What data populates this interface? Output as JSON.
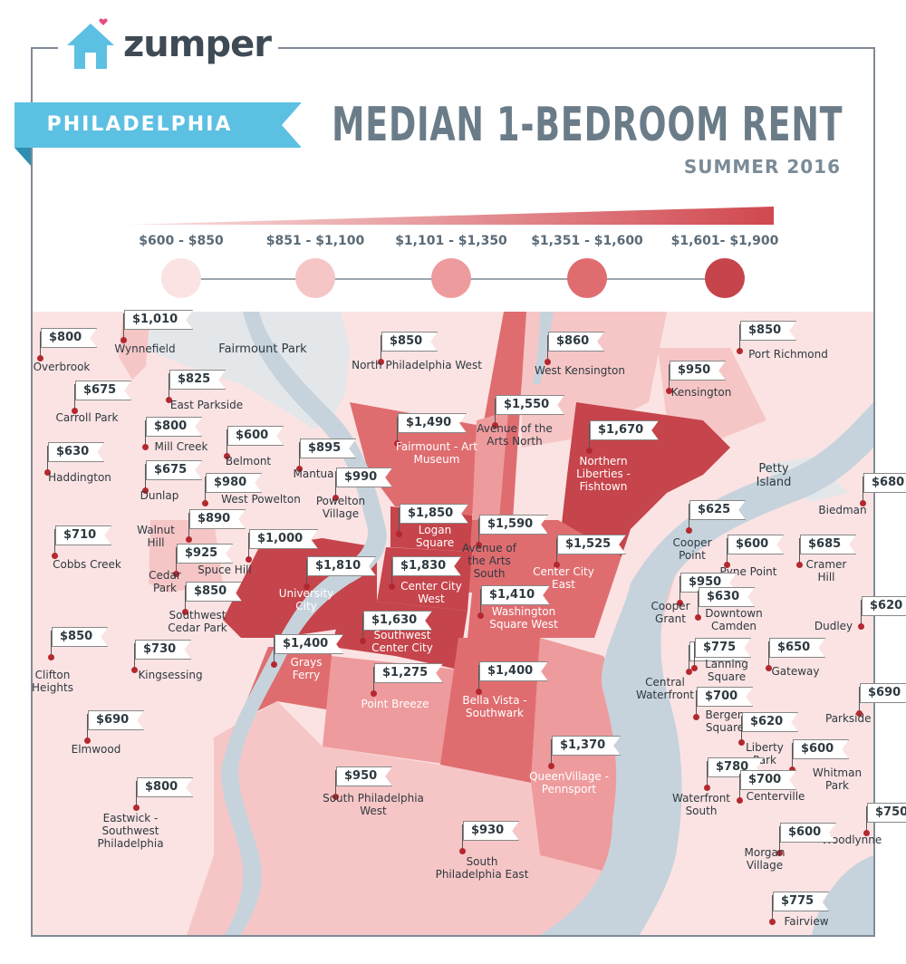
{
  "brand": {
    "name": "zumper"
  },
  "city": "PHILADELPHIA",
  "title": "MEDIAN 1-BEDROOM RENT",
  "subtitle": "SUMMER 2016",
  "legend": [
    {
      "label": "$600 - $850",
      "color": "#fbe3e3"
    },
    {
      "label": "$851 - $1,100",
      "color": "#f6c6c6"
    },
    {
      "label": "$1,101 - $1,350",
      "color": "#ee9b9d"
    },
    {
      "label": "$1,351 - $1,600",
      "color": "#df6d70"
    },
    {
      "label": "$1,601- $1,900",
      "color": "#c6444b"
    }
  ],
  "places": [
    {
      "name": "Fairmount Park"
    },
    {
      "name": "Petty Island"
    }
  ],
  "neighborhoods": [
    {
      "name": "Wynnefield",
      "rent": "$1,010"
    },
    {
      "name": "Overbrook",
      "rent": "$800"
    },
    {
      "name": "North Philadelphia West",
      "rent": "$850"
    },
    {
      "name": "West Kensington",
      "rent": "$860"
    },
    {
      "name": "Port Richmond",
      "rent": "$850"
    },
    {
      "name": "East Parkside",
      "rent": "$825"
    },
    {
      "name": "Carroll Park",
      "rent": "$675"
    },
    {
      "name": "Kensington",
      "rent": "$950"
    },
    {
      "name": "Avenue of the Arts North",
      "rent": "$1,550"
    },
    {
      "name": "Fairmount - Art Museum",
      "rent": "$1,490"
    },
    {
      "name": "Mill Creek",
      "rent": "$800"
    },
    {
      "name": "Belmont",
      "rent": "$600"
    },
    {
      "name": "Northern Liberties - Fishtown",
      "rent": "$1,670"
    },
    {
      "name": "Haddington",
      "rent": "$630"
    },
    {
      "name": "Mantua",
      "rent": "$895"
    },
    {
      "name": "Dunlap",
      "rent": "$675"
    },
    {
      "name": "Powelton Village",
      "rent": "$990"
    },
    {
      "name": "West Powelton",
      "rent": "$980"
    },
    {
      "name": "Biedman",
      "rent": "$680"
    },
    {
      "name": "Logan Square",
      "rent": "$1,850"
    },
    {
      "name": "Walnut Hill",
      "rent": "$890"
    },
    {
      "name": "Avenue of the Arts South",
      "rent": "$1,590"
    },
    {
      "name": "Cooper Point",
      "rent": "$625"
    },
    {
      "name": "Cobbs Creek",
      "rent": "$710"
    },
    {
      "name": "Spuce Hill",
      "rent": "$1,000"
    },
    {
      "name": "Center City East",
      "rent": "$1,525"
    },
    {
      "name": "Pyne Point",
      "rent": "$600"
    },
    {
      "name": "Cramer Hill",
      "rent": "$685"
    },
    {
      "name": "Cedar Park",
      "rent": "$925"
    },
    {
      "name": "University City",
      "rent": "$1,810"
    },
    {
      "name": "Center City West",
      "rent": "$1,830"
    },
    {
      "name": "Cooper Grant",
      "rent": "$950"
    },
    {
      "name": "Downtown Camden",
      "rent": "$630"
    },
    {
      "name": "Southwest Cedar Park",
      "rent": "$850"
    },
    {
      "name": "Washington Square West",
      "rent": "$1,410"
    },
    {
      "name": "Dudley",
      "rent": "$620"
    },
    {
      "name": "Southwest Center City",
      "rent": "$1,630"
    },
    {
      "name": "Clifton Heights",
      "rent": "$850"
    },
    {
      "name": "Kingsessing",
      "rent": "$730"
    },
    {
      "name": "Grays Ferry",
      "rent": "$1,400"
    },
    {
      "name": "Central Waterfront",
      "rent": "$700"
    },
    {
      "name": "Lanning Square",
      "rent": "$775"
    },
    {
      "name": "Gateway",
      "rent": "$650"
    },
    {
      "name": "Point Breeze",
      "rent": "$1,275"
    },
    {
      "name": "Bella Vista - Southwark",
      "rent": "$1,400"
    },
    {
      "name": "Bergen Square",
      "rent": "$700"
    },
    {
      "name": "Parkside",
      "rent": "$690"
    },
    {
      "name": "Elmwood",
      "rent": "$690"
    },
    {
      "name": "Liberty Park",
      "rent": "$620"
    },
    {
      "name": "QueenVillage - Pennsport",
      "rent": "$1,370"
    },
    {
      "name": "Whitman Park",
      "rent": "$600"
    },
    {
      "name": "Waterfront South",
      "rent": "$780"
    },
    {
      "name": "Centerville",
      "rent": "$700"
    },
    {
      "name": "South Philadelphia West",
      "rent": "$950"
    },
    {
      "name": "Eastwick - Southwest Philadelphia",
      "rent": "$800"
    },
    {
      "name": "Woodlynne",
      "rent": "$750"
    },
    {
      "name": "Morgan Village",
      "rent": "$600"
    },
    {
      "name": "South Philadelphia East",
      "rent": "$930"
    },
    {
      "name": "Fairview",
      "rent": "$775"
    }
  ]
}
